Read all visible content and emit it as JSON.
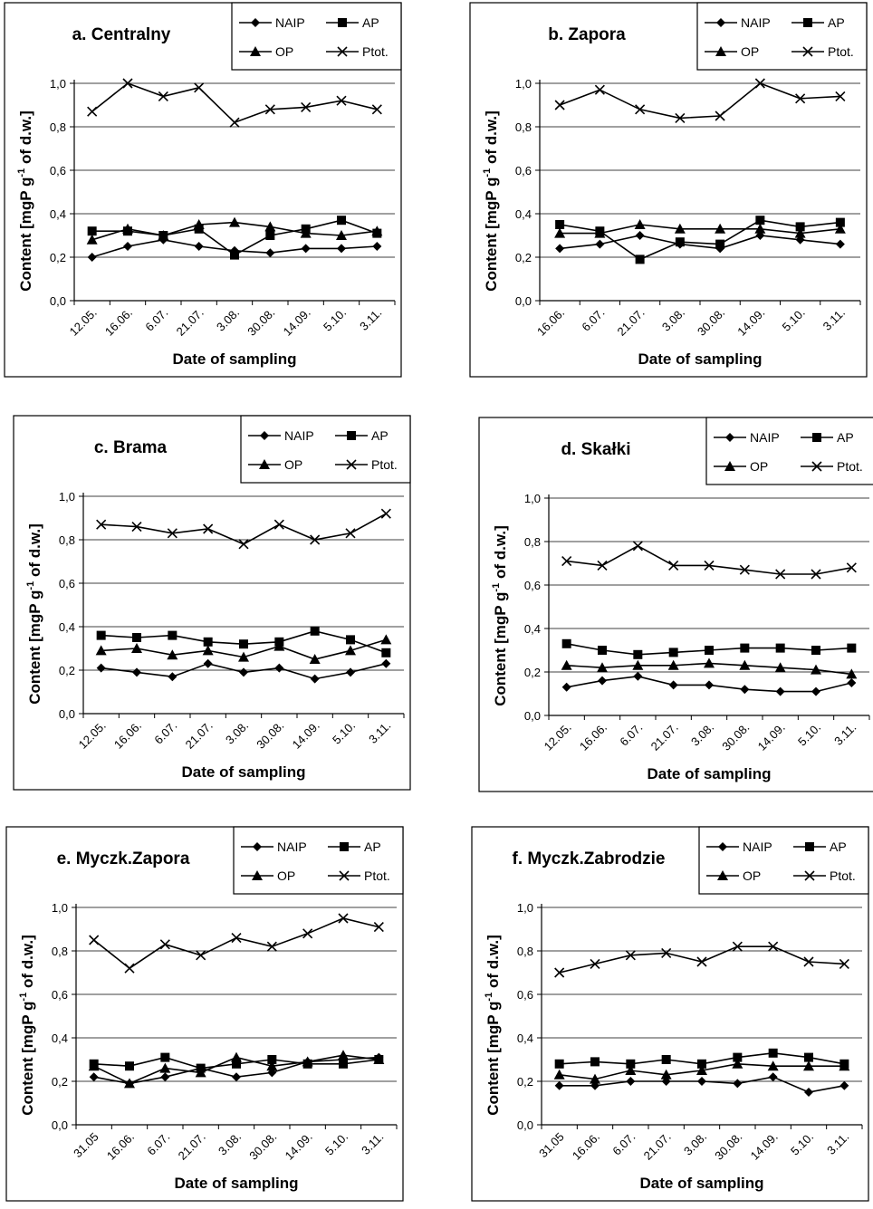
{
  "chart_data": [
    {
      "type": "line",
      "title": "a. Centralny",
      "xlabel": "Date of sampling",
      "ylabel": "Content [mgP g-1 of d.w.]",
      "ylim": [
        0,
        1.0
      ],
      "yticks": [
        "0,0",
        "0,2",
        "0,4",
        "0,6",
        "0,8",
        "1,0"
      ],
      "categories": [
        "12.05.",
        "16.06.",
        "6.07.",
        "21.07.",
        "3.08.",
        "30.08.",
        "14.09.",
        "5.10.",
        "3.11."
      ],
      "grid": true,
      "legend": "top-right",
      "series": [
        {
          "name": "NAIP",
          "marker": "diamond",
          "values": [
            0.2,
            0.25,
            0.28,
            0.25,
            0.23,
            0.22,
            0.24,
            0.24,
            0.25
          ]
        },
        {
          "name": "AP",
          "marker": "square",
          "values": [
            0.32,
            0.32,
            0.3,
            0.33,
            0.21,
            0.3,
            0.33,
            0.37,
            0.31
          ]
        },
        {
          "name": "OP",
          "marker": "triangle",
          "values": [
            0.28,
            0.33,
            0.3,
            0.35,
            0.36,
            0.34,
            0.31,
            0.3,
            0.32
          ]
        },
        {
          "name": "Ptot.",
          "marker": "x",
          "values": [
            0.87,
            1.0,
            0.94,
            0.98,
            0.82,
            0.88,
            0.89,
            0.92,
            0.88
          ]
        }
      ]
    },
    {
      "type": "line",
      "title": "b. Zapora",
      "xlabel": "Date of sampling",
      "ylabel": "Content [mgP g-1 of d.w.]",
      "ylim": [
        0,
        1.0
      ],
      "yticks": [
        "0,0",
        "0,2",
        "0,4",
        "0,6",
        "0,8",
        "1,0"
      ],
      "categories": [
        "16.06.",
        "6.07.",
        "21.07.",
        "3.08.",
        "30.08.",
        "14.09.",
        "5.10.",
        "3.11."
      ],
      "grid": true,
      "legend": "top-right",
      "series": [
        {
          "name": "NAIP",
          "marker": "diamond",
          "values": [
            0.24,
            0.26,
            0.3,
            0.26,
            0.24,
            0.3,
            0.28,
            0.26
          ]
        },
        {
          "name": "AP",
          "marker": "square",
          "values": [
            0.35,
            0.32,
            0.19,
            0.27,
            0.26,
            0.37,
            0.34,
            0.36
          ]
        },
        {
          "name": "OP",
          "marker": "triangle",
          "values": [
            0.31,
            0.31,
            0.35,
            0.33,
            0.33,
            0.33,
            0.31,
            0.33
          ]
        },
        {
          "name": "Ptot.",
          "marker": "x",
          "values": [
            0.9,
            0.97,
            0.88,
            0.84,
            0.85,
            1.0,
            0.93,
            0.94
          ]
        }
      ]
    },
    {
      "type": "line",
      "title": "c. Brama",
      "xlabel": "Date of sampling",
      "ylabel": "Content [mgP g-1 of d.w.]",
      "ylim": [
        0,
        1.0
      ],
      "yticks": [
        "0,0",
        "0,2",
        "0,4",
        "0,6",
        "0,8",
        "1,0"
      ],
      "categories": [
        "12.05.",
        "16.06.",
        "6.07.",
        "21.07.",
        "3.08.",
        "30.08.",
        "14.09.",
        "5.10.",
        "3.11."
      ],
      "grid": true,
      "legend": "top-right",
      "series": [
        {
          "name": "NAIP",
          "marker": "diamond",
          "values": [
            0.21,
            0.19,
            0.17,
            0.23,
            0.19,
            0.21,
            0.16,
            0.19,
            0.23
          ]
        },
        {
          "name": "AP",
          "marker": "square",
          "values": [
            0.36,
            0.35,
            0.36,
            0.33,
            0.32,
            0.33,
            0.38,
            0.34,
            0.28
          ]
        },
        {
          "name": "OP",
          "marker": "triangle",
          "values": [
            0.29,
            0.3,
            0.27,
            0.29,
            0.26,
            0.31,
            0.25,
            0.29,
            0.34
          ]
        },
        {
          "name": "Ptot.",
          "marker": "x",
          "values": [
            0.87,
            0.86,
            0.83,
            0.85,
            0.78,
            0.87,
            0.8,
            0.83,
            0.92
          ]
        }
      ]
    },
    {
      "type": "line",
      "title": "d. Skałki",
      "xlabel": "Date of sampling",
      "ylabel": "Content [mgP g-1 of d.w.]",
      "ylim": [
        0,
        1.0
      ],
      "yticks": [
        "0,0",
        "0,2",
        "0,4",
        "0,6",
        "0,8",
        "1,0"
      ],
      "categories": [
        "12.05.",
        "16.06.",
        "6.07.",
        "21.07.",
        "3.08.",
        "30.08.",
        "14.09.",
        "5.10.",
        "3.11."
      ],
      "grid": true,
      "legend": "top-right",
      "series": [
        {
          "name": "NAIP",
          "marker": "diamond",
          "values": [
            0.13,
            0.16,
            0.18,
            0.14,
            0.14,
            0.12,
            0.11,
            0.11,
            0.15
          ]
        },
        {
          "name": "AP",
          "marker": "square",
          "values": [
            0.33,
            0.3,
            0.28,
            0.29,
            0.3,
            0.31,
            0.31,
            0.3,
            0.31
          ]
        },
        {
          "name": "OP",
          "marker": "triangle",
          "values": [
            0.23,
            0.22,
            0.23,
            0.23,
            0.24,
            0.23,
            0.22,
            0.21,
            0.19
          ]
        },
        {
          "name": "Ptot.",
          "marker": "x",
          "values": [
            0.71,
            0.69,
            0.78,
            0.69,
            0.69,
            0.67,
            0.65,
            0.65,
            0.68
          ]
        }
      ]
    },
    {
      "type": "line",
      "title": "e. Myczk.Zapora",
      "xlabel": "Date of sampling",
      "ylabel": "Content [mgP g-1 of d.w.]",
      "ylim": [
        0,
        1.0
      ],
      "yticks": [
        "0,0",
        "0,2",
        "0,4",
        "0,6",
        "0,8",
        "1,0"
      ],
      "categories": [
        "31.05",
        "16.06.",
        "6.07.",
        "21.07.",
        "3.08.",
        "30.08.",
        "14.09.",
        "5.10.",
        "3.11."
      ],
      "grid": true,
      "legend": "top-right",
      "series": [
        {
          "name": "NAIP",
          "marker": "diamond",
          "values": [
            0.22,
            0.19,
            0.22,
            0.26,
            0.22,
            0.24,
            0.29,
            0.3,
            0.31
          ]
        },
        {
          "name": "AP",
          "marker": "square",
          "values": [
            0.28,
            0.27,
            0.31,
            0.26,
            0.28,
            0.3,
            0.28,
            0.28,
            0.3
          ]
        },
        {
          "name": "OP",
          "marker": "triangle",
          "values": [
            0.27,
            0.19,
            0.26,
            0.24,
            0.31,
            0.27,
            0.29,
            0.32,
            0.3
          ]
        },
        {
          "name": "Ptot.",
          "marker": "x",
          "values": [
            0.85,
            0.72,
            0.83,
            0.78,
            0.86,
            0.82,
            0.88,
            0.95,
            0.91
          ]
        }
      ]
    },
    {
      "type": "line",
      "title": "f. Myczk.Zabrodzie",
      "xlabel": "Date of sampling",
      "ylabel": "Content [mgP g-1 of d.w.]",
      "ylim": [
        0,
        1.0
      ],
      "yticks": [
        "0,0",
        "0,2",
        "0,4",
        "0,6",
        "0,8",
        "1,0"
      ],
      "categories": [
        "31.05",
        "16.06.",
        "6.07.",
        "21.07.",
        "3.08.",
        "30.08.",
        "14.09.",
        "5.10.",
        "3.11."
      ],
      "grid": true,
      "legend": "top-right",
      "series": [
        {
          "name": "NAIP",
          "marker": "diamond",
          "values": [
            0.18,
            0.18,
            0.2,
            0.2,
            0.2,
            0.19,
            0.22,
            0.15,
            0.18
          ]
        },
        {
          "name": "AP",
          "marker": "square",
          "values": [
            0.28,
            0.29,
            0.28,
            0.3,
            0.28,
            0.31,
            0.33,
            0.31,
            0.28
          ]
        },
        {
          "name": "OP",
          "marker": "triangle",
          "values": [
            0.23,
            0.21,
            0.25,
            0.23,
            0.25,
            0.28,
            0.27,
            0.27,
            0.27
          ]
        },
        {
          "name": "Ptot.",
          "marker": "x",
          "values": [
            0.7,
            0.74,
            0.78,
            0.79,
            0.75,
            0.82,
            0.82,
            0.75,
            0.74
          ]
        }
      ]
    }
  ]
}
